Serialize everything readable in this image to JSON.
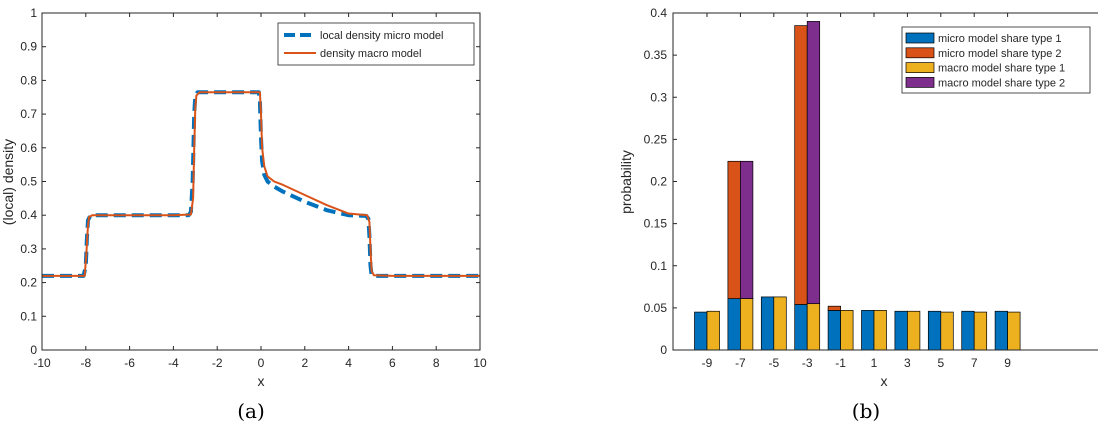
{
  "chart_data": [
    {
      "panel": "(a)",
      "type": "line",
      "xlabel": "x",
      "ylabel": "(local) density",
      "xlim": [
        -10,
        10
      ],
      "ylim": [
        0,
        1
      ],
      "xticks": [
        "-10",
        "-8",
        "-6",
        "-4",
        "-2",
        "0",
        "2",
        "4",
        "6",
        "8",
        "10"
      ],
      "yticks": [
        "0",
        "0.1",
        "0.2",
        "0.3",
        "0.4",
        "0.5",
        "0.6",
        "0.7",
        "0.8",
        "0.9",
        "1"
      ],
      "grid": false,
      "legend_position": "top-right",
      "series": [
        {
          "name": "local density micro model",
          "color": "#0072BD",
          "style": "dashed",
          "x": [
            -10,
            -8.1,
            -8.0,
            -7.95,
            -7.9,
            -7.8,
            -7.5,
            -6,
            -4,
            -3.3,
            -3.2,
            -3.12,
            -3.05,
            -3.0,
            -2.9,
            -2,
            -1,
            -0.1,
            -0.05,
            0,
            0.05,
            0.15,
            0.3,
            0.6,
            1,
            2,
            3,
            4,
            4.8,
            4.9,
            4.95,
            5.0,
            5.05,
            5.2,
            6,
            8,
            10
          ],
          "y": [
            0.22,
            0.22,
            0.25,
            0.33,
            0.385,
            0.398,
            0.4,
            0.4,
            0.4,
            0.4,
            0.41,
            0.5,
            0.7,
            0.755,
            0.765,
            0.765,
            0.765,
            0.765,
            0.74,
            0.63,
            0.56,
            0.52,
            0.5,
            0.485,
            0.47,
            0.44,
            0.415,
            0.4,
            0.398,
            0.39,
            0.34,
            0.25,
            0.222,
            0.22,
            0.22,
            0.22,
            0.22
          ]
        },
        {
          "name": "density macro model",
          "color": "#D95319",
          "style": "solid",
          "x": [
            -10,
            -8.05,
            -7.98,
            -7.9,
            -7.85,
            -7.7,
            -6,
            -4,
            -3.2,
            -3.1,
            -3.05,
            -3.0,
            -2.95,
            -2.8,
            -2,
            -1,
            -0.05,
            0,
            0.05,
            0.15,
            0.3,
            0.6,
            1,
            2,
            3,
            4,
            4.85,
            4.95,
            5.0,
            5.05,
            5.15,
            6,
            8,
            10
          ],
          "y": [
            0.22,
            0.22,
            0.28,
            0.37,
            0.395,
            0.4,
            0.4,
            0.4,
            0.402,
            0.45,
            0.6,
            0.72,
            0.755,
            0.765,
            0.765,
            0.765,
            0.765,
            0.7,
            0.6,
            0.545,
            0.515,
            0.5,
            0.49,
            0.46,
            0.43,
            0.405,
            0.4,
            0.38,
            0.3,
            0.235,
            0.222,
            0.22,
            0.22,
            0.22
          ]
        }
      ]
    },
    {
      "panel": "(b)",
      "type": "bar",
      "stacked": true,
      "xlabel": "x",
      "ylabel": "probability",
      "categories": [
        "-9",
        "-7",
        "-5",
        "-3",
        "-1",
        "1",
        "3",
        "5",
        "7",
        "9"
      ],
      "ylim": [
        0,
        0.4
      ],
      "yticks": [
        "0",
        "0.05",
        "0.1",
        "0.15",
        "0.2",
        "0.25",
        "0.3",
        "0.35",
        "0.4"
      ],
      "grid": false,
      "legend_position": "top-right",
      "series": [
        {
          "name": "micro model share type 1",
          "color": "#0072BD",
          "group": "micro",
          "values": [
            0.045,
            0.061,
            0.063,
            0.054,
            0.047,
            0.047,
            0.046,
            0.046,
            0.046,
            0.046
          ]
        },
        {
          "name": "micro model share type 2",
          "color": "#D95319",
          "group": "micro",
          "values": [
            0.0,
            0.163,
            0.0,
            0.331,
            0.005,
            0.0,
            0.0,
            0.0,
            0.0,
            0.0
          ]
        },
        {
          "name": "macro model share type 1",
          "color": "#EDB120",
          "group": "macro",
          "values": [
            0.046,
            0.061,
            0.063,
            0.055,
            0.047,
            0.047,
            0.046,
            0.045,
            0.045,
            0.045
          ]
        },
        {
          "name": "macro model share type 2",
          "color": "#7E2F8E",
          "group": "macro",
          "values": [
            0.0,
            0.163,
            0.0,
            0.335,
            0.0,
            0.0,
            0.0,
            0.0,
            0.0,
            0.0
          ]
        }
      ]
    }
  ]
}
